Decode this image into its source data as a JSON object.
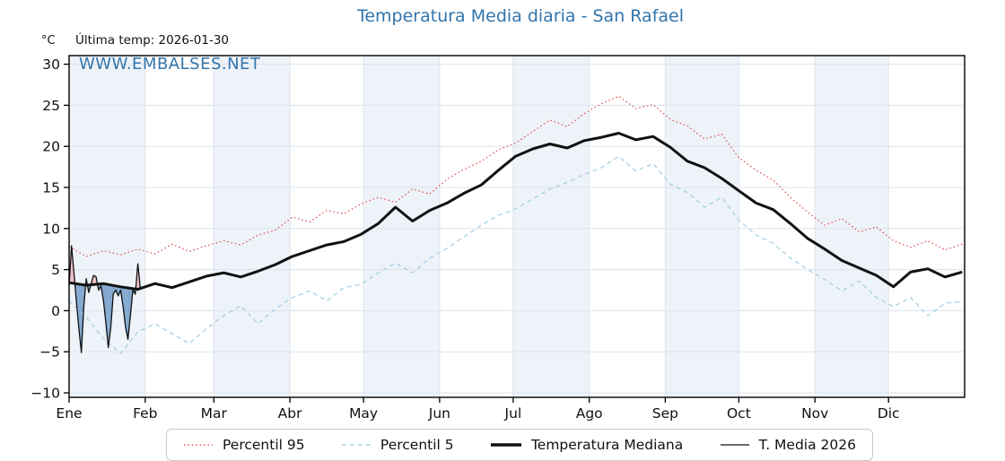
{
  "header": {
    "title": "Temperatura Media diaria - San Rafael",
    "y_unit": "°C",
    "last_temp": "Última temp: 2026-01-30",
    "watermark": "WWW.EMBALSES.NET"
  },
  "colors": {
    "title_blue": "#3375ac",
    "watermark_blue": "#3375ac",
    "p95_red": "#dd4444",
    "p5_blue": "#a6d0e4",
    "line_black": "#111111",
    "band_fill": "#eef3f9",
    "gridline": "#dce3ea",
    "fill_above": "#f2b3b9",
    "fill_below": "#6494c6",
    "axis_black": "#000000",
    "legend_border": "#c9c9c9"
  },
  "chart_data": {
    "type": "line",
    "title": "Temperatura Media diaria - San Rafael",
    "xlabel": "",
    "ylabel": "°C",
    "x_unit": "day_of_year",
    "x_range": [
      0,
      365
    ],
    "ylim": [
      -10.55,
      31.05
    ],
    "grid": true,
    "legend_position": "bottom",
    "x_tick_labels": [
      "Ene",
      "Feb",
      "Mar",
      "Abr",
      "May",
      "Jun",
      "Jul",
      "Ago",
      "Sep",
      "Oct",
      "Nov",
      "Dic"
    ],
    "month_start_days": [
      0,
      31,
      59,
      90,
      120,
      151,
      181,
      212,
      243,
      273,
      304,
      334,
      365
    ],
    "y_ticks": [
      30,
      25,
      20,
      15,
      10,
      5,
      0,
      -5,
      -10
    ],
    "y_tick_labels": [
      "30",
      "25",
      "20",
      "15",
      "10",
      "5",
      "0",
      "−5",
      "−10"
    ],
    "series": [
      {
        "name": "Percentil 95",
        "style": "dotted",
        "color_key": "p95_red",
        "width": 1.1,
        "step_days": 7,
        "values": [
          7.8,
          6.6,
          7.3,
          6.8,
          7.5,
          6.9,
          8.1,
          7.2,
          7.9,
          8.5,
          8.0,
          9.2,
          9.8,
          11.4,
          10.8,
          12.2,
          11.8,
          13.0,
          13.8,
          13.2,
          14.8,
          14.2,
          16.0,
          17.2,
          18.2,
          19.6,
          20.4,
          21.8,
          23.2,
          22.4,
          24.0,
          25.2,
          26.1,
          24.6,
          25.1,
          23.3,
          22.5,
          20.9,
          21.5,
          18.6,
          17.1,
          15.9,
          13.8,
          12.0,
          10.4,
          11.2,
          9.6,
          10.2,
          8.5,
          7.7,
          8.5,
          7.4,
          8.1
        ]
      },
      {
        "name": "Percentil 5",
        "style": "dashed",
        "color_key": "p5_blue",
        "width": 1.3,
        "step_days": 7,
        "values": [
          1.2,
          -0.8,
          -3.4,
          -5.2,
          -2.6,
          -1.6,
          -2.8,
          -4.0,
          -2.2,
          -0.6,
          0.6,
          -1.6,
          0.2,
          1.6,
          2.4,
          1.2,
          2.8,
          3.2,
          4.6,
          5.8,
          4.6,
          6.4,
          7.6,
          9.0,
          10.4,
          11.6,
          12.4,
          13.6,
          14.8,
          15.6,
          16.6,
          17.4,
          18.8,
          17.0,
          17.9,
          15.4,
          14.4,
          12.6,
          13.8,
          11.0,
          9.2,
          8.2,
          6.4,
          5.0,
          3.8,
          2.4,
          3.6,
          1.6,
          0.5,
          1.6,
          -0.6,
          0.9,
          1.1
        ]
      },
      {
        "name": "Temperatura Mediana",
        "style": "solid",
        "color_key": "line_black",
        "width": 3,
        "step_days": 7,
        "values": [
          3.4,
          3.1,
          3.3,
          2.9,
          2.6,
          3.3,
          2.8,
          3.5,
          4.2,
          4.6,
          4.1,
          4.8,
          5.6,
          6.6,
          7.3,
          8.0,
          8.4,
          9.3,
          10.6,
          12.6,
          10.9,
          12.2,
          13.1,
          14.3,
          15.3,
          17.1,
          18.8,
          19.7,
          20.3,
          19.8,
          20.7,
          21.1,
          21.6,
          20.8,
          21.2,
          19.9,
          18.2,
          17.4,
          16.1,
          14.6,
          13.1,
          12.3,
          10.6,
          8.8,
          7.5,
          6.1,
          5.2,
          4.3,
          2.9,
          4.7,
          5.1,
          4.1,
          4.7
        ]
      },
      {
        "name": "T. Media 2026",
        "style": "solid",
        "color_key": "line_black",
        "width": 1.3,
        "step_days": 1,
        "start_day": 0,
        "values": [
          3.0,
          7.9,
          4.5,
          1.0,
          -2.2,
          -5.1,
          0.5,
          3.9,
          2.2,
          3.3,
          4.3,
          4.1,
          2.5,
          3.0,
          1.2,
          -1.5,
          -4.5,
          -2.0,
          2.0,
          2.5,
          1.8,
          2.5,
          0.5,
          -2.0,
          -3.5,
          -0.5,
          2.5,
          2.0,
          5.7,
          2.8
        ]
      }
    ],
    "fills": {
      "description": "T. Media 2026 vs Temperatura Mediana (enero)",
      "above_color_key": "fill_above",
      "below_color_key": "fill_below",
      "opacity": 0.85
    }
  }
}
